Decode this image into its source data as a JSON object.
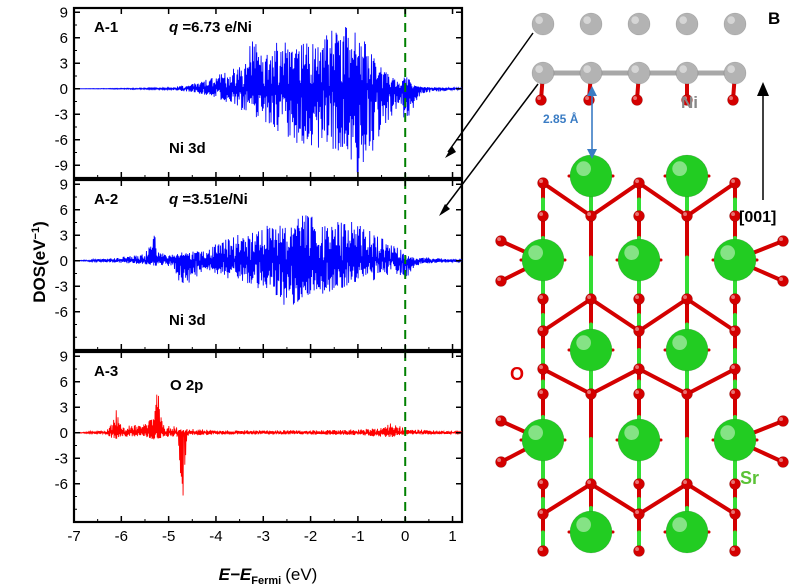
{
  "colors": {
    "ni_dos": "#0000ff",
    "o_dos": "#ff0000",
    "fermi_line": "#008000",
    "sr_atom": "#22cc22",
    "o_atom": "#d40000",
    "ni_atom": "#b3b3b3",
    "bond_sr": "#33dd33",
    "bond_o": "#d40000",
    "bond_ni": "#a8a8a8",
    "distance_arrow": "#3a7cc4"
  },
  "chart_data": [
    {
      "type": "line",
      "panel": "A-1",
      "label": "A-1",
      "charge": "6.73 e/Ni",
      "orbital": "Ni 3d",
      "series": [
        {
          "name": "Ni 3d",
          "color": "#0000ff"
        }
      ],
      "xlim": [
        -7,
        1.2
      ],
      "ylim": [
        -10.5,
        9.5
      ],
      "yticks": [
        "9",
        "6",
        "3",
        "0",
        "-3",
        "-6",
        "-9"
      ],
      "fermi_energy": 0.0,
      "envelope": {
        "x": [
          -7,
          -5.0,
          -4.5,
          -4.0,
          -3.5,
          -3.2,
          -3.0,
          -2.6,
          -2.3,
          -2.1,
          -1.8,
          -1.4,
          -1.2,
          -1.0,
          -0.8,
          -0.6,
          -0.3,
          -0.1,
          0.0,
          0.1,
          0.2,
          0.4,
          1.2
        ],
        "upper": [
          0,
          0.1,
          0.6,
          1.5,
          3.0,
          6.0,
          4.0,
          6.0,
          5.0,
          6.0,
          5.0,
          9.0,
          7.0,
          8.5,
          5.0,
          3.0,
          1.5,
          0.6,
          1.5,
          1.2,
          0.4,
          0.2,
          0.1
        ],
        "lower": [
          0,
          -0.1,
          -0.4,
          -1.0,
          -2.5,
          -3.0,
          -4.5,
          -5.5,
          -6.5,
          -7.0,
          -7.0,
          -7.5,
          -8.0,
          -10.0,
          -9.0,
          -6.0,
          -3.5,
          -1.5,
          -4.5,
          -3.0,
          -2.0,
          -0.5,
          -0.1
        ]
      }
    },
    {
      "type": "line",
      "panel": "A-2",
      "label": "A-2",
      "charge": "3.51e/Ni",
      "orbital": "Ni 3d",
      "series": [
        {
          "name": "Ni 3d",
          "color": "#0000ff"
        }
      ],
      "xlim": [
        -7,
        1.2
      ],
      "ylim": [
        -10.5,
        9.5
      ],
      "yticks": [
        "9",
        "6",
        "3",
        "0",
        "-3",
        "-6"
      ],
      "fermi_energy": 0.0,
      "envelope": {
        "x": [
          -7,
          -6.2,
          -5.5,
          -5.3,
          -5.2,
          -4.9,
          -4.7,
          -4.2,
          -4.0,
          -3.6,
          -3.2,
          -2.8,
          -2.5,
          -2.2,
          -1.8,
          -1.5,
          -1.2,
          -0.9,
          -0.6,
          -0.3,
          0.0,
          0.1,
          0.2,
          0.5,
          1.2
        ],
        "upper": [
          0,
          0.3,
          0.8,
          3.5,
          1.0,
          0.7,
          1.0,
          1.2,
          2.0,
          3.0,
          3.5,
          4.5,
          4.0,
          5.5,
          5.0,
          4.5,
          4.8,
          4.0,
          3.0,
          2.0,
          1.0,
          0.8,
          0.3,
          0.4,
          0.1
        ],
        "lower": [
          0,
          -0.2,
          -0.4,
          -0.8,
          -0.5,
          -0.8,
          -3.5,
          -1.0,
          -1.5,
          -2.5,
          -3.0,
          -4.0,
          -6.0,
          -4.5,
          -4.0,
          -3.5,
          -3.0,
          -2.0,
          -2.5,
          -1.5,
          -2.0,
          -1.8,
          -0.6,
          -0.3,
          -0.1
        ]
      }
    },
    {
      "type": "line",
      "panel": "A-3",
      "label": "A-3",
      "orbital": "O 2p",
      "series": [
        {
          "name": "O 2p",
          "color": "#ff0000"
        }
      ],
      "xlim": [
        -7,
        1.2
      ],
      "ylim": [
        -10.5,
        9.5
      ],
      "yticks": [
        "9",
        "6",
        "3",
        "0",
        "-3",
        "-6"
      ],
      "fermi_energy": 0.0,
      "xticks": [
        "-7",
        "-6",
        "-5",
        "-4",
        "-3",
        "-2",
        "-1",
        "0",
        "1"
      ],
      "xlabel": "E−E",
      "xlabel_sub": "Fermi",
      "xlabel_unit": "(eV)",
      "ylabel": "DOS(eV",
      "ylabel_sup": "−1",
      "ylabel_close": ")",
      "envelope": {
        "x": [
          -7,
          -6.3,
          -6.15,
          -6.0,
          -5.5,
          -5.3,
          -5.25,
          -5.1,
          -4.8,
          -4.7,
          -4.6,
          -4.0,
          -3.0,
          -2.0,
          -1.0,
          -0.5,
          -0.3,
          0.0,
          0.5,
          1.2
        ],
        "upper": [
          0,
          0.3,
          3.5,
          0.8,
          1.0,
          2.0,
          6.5,
          1.2,
          0.6,
          0.4,
          0.5,
          0.3,
          0.3,
          0.3,
          0.4,
          0.6,
          1.2,
          0.5,
          0.3,
          0.1
        ],
        "lower": [
          0,
          -0.2,
          -1.0,
          -0.5,
          -0.4,
          -1.0,
          -0.8,
          -0.5,
          -0.5,
          -10.0,
          -0.4,
          -0.2,
          -0.2,
          -0.2,
          -0.3,
          -0.5,
          -0.6,
          -0.2,
          -0.2,
          -0.1
        ]
      }
    }
  ],
  "structure": {
    "panel_label": "B",
    "bond_length": "2.85 Å",
    "atom_labels": {
      "ni": "Ni",
      "o": "O",
      "sr": "Sr"
    },
    "direction_label": "[001]"
  }
}
